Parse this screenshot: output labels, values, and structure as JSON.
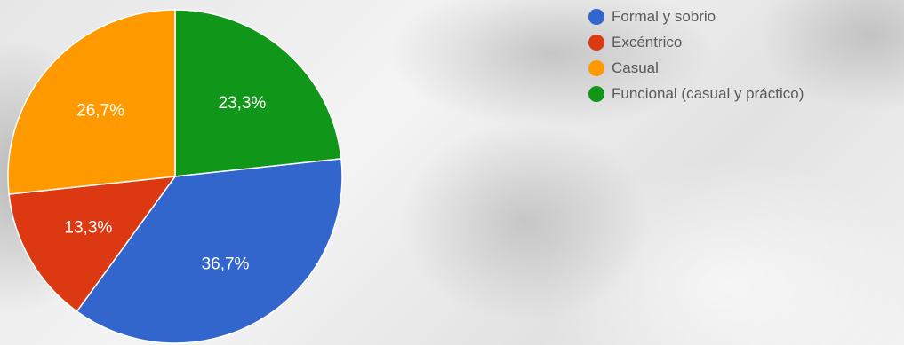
{
  "chart_data": {
    "type": "pie",
    "categories": [
      "Formal y sobrio",
      "Excéntrico",
      "Casual",
      "Funcional (casual y práctico)"
    ],
    "values": [
      36.7,
      13.3,
      26.7,
      23.3
    ],
    "data_labels": [
      "36,7%",
      "13,3%",
      "26,7%",
      "23,3%"
    ],
    "colors": [
      "#3366cc",
      "#dc3912",
      "#ff9900",
      "#109618"
    ],
    "start_angle_deg": 90,
    "direction": "clockwise",
    "legend_position": "right"
  }
}
